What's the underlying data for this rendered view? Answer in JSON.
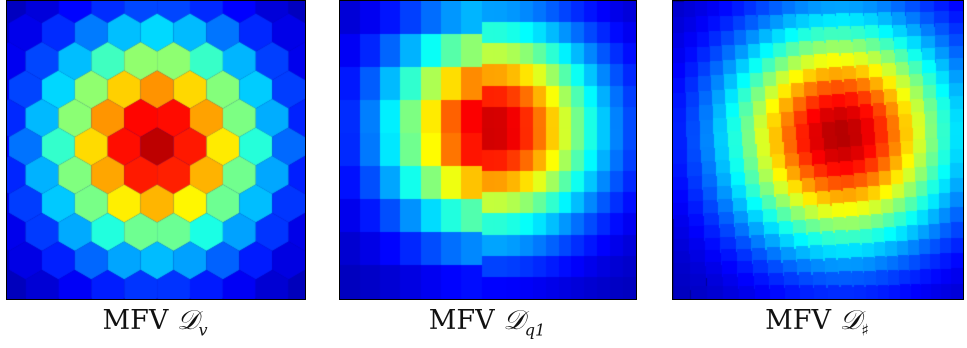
{
  "panels": [
    {
      "prefix": "MFV",
      "symbol": "𝒟",
      "subscript": "v",
      "pattern": "hexagonal"
    },
    {
      "prefix": "MFV",
      "symbol": "𝒟",
      "subscript": "q1",
      "pattern": "quadrilateral"
    },
    {
      "prefix": "MFV",
      "symbol": "𝒟",
      "subscript": "♯",
      "pattern": "distorted-grid"
    }
  ],
  "colormap": "jet"
}
